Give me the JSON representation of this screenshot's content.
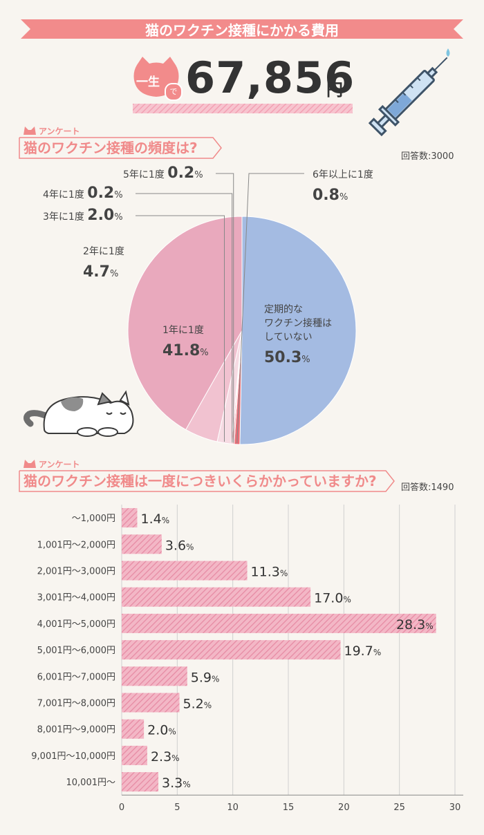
{
  "header": {
    "title": "猫のワクチン接種にかかる費用",
    "lifetime_label": "一生",
    "lifetime_particle": "で",
    "lifetime_total": "67,856",
    "lifetime_unit": "円"
  },
  "colors": {
    "accent": "#f28b8b",
    "pie_blue": "#a4bbe2",
    "pie_pink": "#e9a9bd",
    "bar_pink": "#f0a7ba"
  },
  "icons": [
    "cat-head-icon",
    "syringe-icon",
    "sleeping-cat-illustration",
    "cat-ear-icon"
  ],
  "survey1": {
    "tag": "アンケート",
    "question": "猫のワクチン接種の頻度は?",
    "respondents": "回答数:3000"
  },
  "survey2": {
    "tag": "アンケート",
    "question": "猫のワクチン接種は一度につきいくらかかっていますか?",
    "respondents": "回答数:1490"
  },
  "chart_data": [
    {
      "type": "pie",
      "unit": "%",
      "slices": [
        {
          "label": "定期的なワクチン接種はしていない",
          "value": 50.3,
          "color": "#a4bbe2"
        },
        {
          "label": "1年に1度",
          "value": 41.8,
          "color": "#e9a9bd"
        },
        {
          "label": "2年に1度",
          "value": 4.7,
          "color": "#f1c2d0"
        },
        {
          "label": "3年に1度",
          "value": 2.0,
          "color": "#f6dbe3"
        },
        {
          "label": "4年に1度",
          "value": 0.2,
          "color": "#f7a8b8"
        },
        {
          "label": "5年に1度",
          "value": 0.2,
          "color": "#f08c95"
        },
        {
          "label": "6年以上に1度",
          "value": 0.8,
          "color": "#e86e78"
        }
      ]
    },
    {
      "type": "bar",
      "orientation": "horizontal",
      "unit": "%",
      "categories": [
        "〜1,000円",
        "1,001円〜2,000円",
        "2,001円〜3,000円",
        "3,001円〜4,000円",
        "4,001円〜5,000円",
        "5,001円〜6,000円",
        "6,001円〜7,000円",
        "7,001円〜8,000円",
        "8,001円〜9,000円",
        "9,001円〜10,000円",
        "10,001円〜"
      ],
      "values": [
        1.4,
        3.6,
        11.3,
        17.0,
        28.3,
        19.7,
        5.9,
        5.2,
        2.0,
        2.3,
        3.3
      ],
      "xlim": [
        0,
        30
      ],
      "xticks": [
        0,
        5,
        10,
        15,
        20,
        25,
        30
      ],
      "grid": true
    }
  ]
}
